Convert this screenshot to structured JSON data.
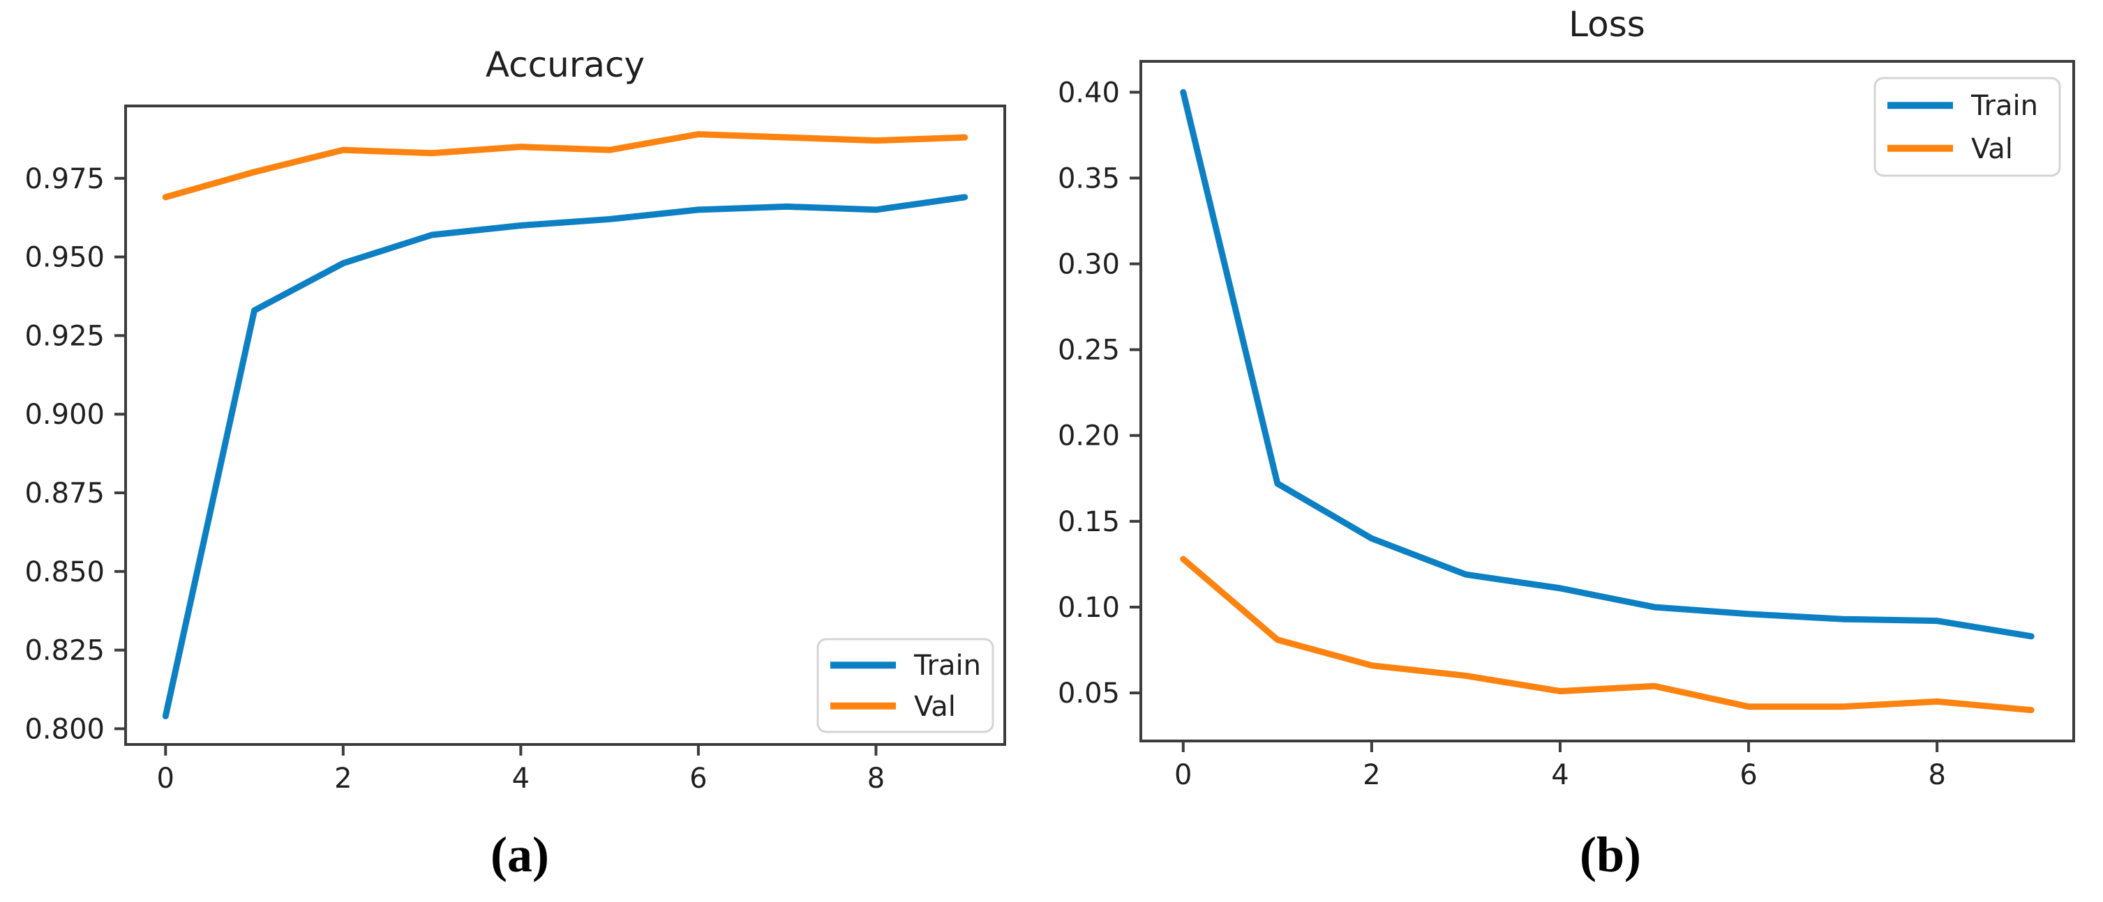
{
  "figure": {
    "background": "#ffffff",
    "text_color": "#1f1f1f",
    "axis_color": "#3c3c3c",
    "legend_border_color": "#d4d4d4",
    "legend_fill": "#ffffff"
  },
  "chart_data": [
    {
      "id": "accuracy",
      "type": "line",
      "title": "Accuracy",
      "caption": "(a)",
      "xlabel": "",
      "ylabel": "",
      "grid": false,
      "x": [
        0,
        1,
        2,
        3,
        4,
        5,
        6,
        7,
        8,
        9
      ],
      "xlim": [
        -0.45,
        9.45
      ],
      "ylim": [
        0.795,
        0.998
      ],
      "xticks": [
        0,
        2,
        4,
        6,
        8
      ],
      "xtick_labels": [
        "0",
        "2",
        "4",
        "6",
        "8"
      ],
      "yticks": [
        0.8,
        0.825,
        0.85,
        0.875,
        0.9,
        0.925,
        0.95,
        0.975
      ],
      "ytick_labels": [
        "0.800",
        "0.825",
        "0.850",
        "0.875",
        "0.900",
        "0.925",
        "0.950",
        "0.975"
      ],
      "legend": {
        "position": "lower-right",
        "entries": [
          "Train",
          "Val"
        ]
      },
      "series": [
        {
          "name": "Train",
          "color": "#0d80c4",
          "values": [
            0.804,
            0.933,
            0.948,
            0.957,
            0.96,
            0.962,
            0.965,
            0.966,
            0.965,
            0.969
          ]
        },
        {
          "name": "Val",
          "color": "#fd8311",
          "values": [
            0.969,
            0.977,
            0.984,
            0.983,
            0.985,
            0.984,
            0.989,
            0.988,
            0.987,
            0.988
          ]
        }
      ]
    },
    {
      "id": "loss",
      "type": "line",
      "title": "Loss",
      "caption": "(b)",
      "xlabel": "",
      "ylabel": "",
      "grid": false,
      "x": [
        0,
        1,
        2,
        3,
        4,
        5,
        6,
        7,
        8,
        9
      ],
      "xlim": [
        -0.45,
        9.45
      ],
      "ylim": [
        0.022,
        0.418
      ],
      "xticks": [
        0,
        2,
        4,
        6,
        8
      ],
      "xtick_labels": [
        "0",
        "2",
        "4",
        "6",
        "8"
      ],
      "yticks": [
        0.05,
        0.1,
        0.15,
        0.2,
        0.25,
        0.3,
        0.35,
        0.4
      ],
      "ytick_labels": [
        "0.05",
        "0.10",
        "0.15",
        "0.20",
        "0.25",
        "0.30",
        "0.35",
        "0.40"
      ],
      "legend": {
        "position": "upper-right",
        "entries": [
          "Train",
          "Val"
        ]
      },
      "series": [
        {
          "name": "Train",
          "color": "#0d80c4",
          "values": [
            0.4,
            0.172,
            0.14,
            0.119,
            0.111,
            0.1,
            0.096,
            0.093,
            0.092,
            0.083
          ]
        },
        {
          "name": "Val",
          "color": "#fd8311",
          "values": [
            0.128,
            0.081,
            0.066,
            0.06,
            0.051,
            0.054,
            0.042,
            0.042,
            0.045,
            0.04
          ]
        }
      ]
    }
  ]
}
